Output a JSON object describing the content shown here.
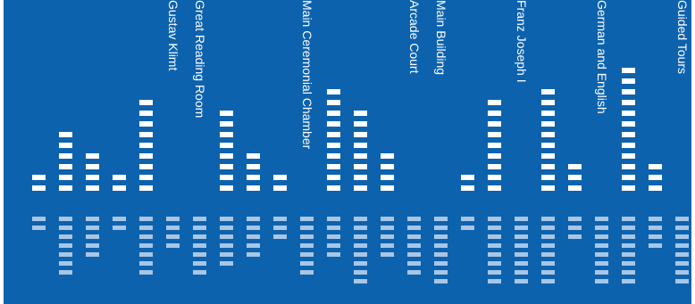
{
  "colors": {
    "background": "#0d62ad",
    "bar": "#ffffff",
    "reflection": "#a8c6e6"
  },
  "columns": [
    {
      "kind": "bar",
      "segments": 2,
      "reflection": 2
    },
    {
      "kind": "bar",
      "segments": 6,
      "reflection": 7
    },
    {
      "kind": "bar",
      "segments": 4,
      "reflection": 5
    },
    {
      "kind": "bar",
      "segments": 2,
      "reflection": 2
    },
    {
      "kind": "bar",
      "segments": 9,
      "reflection": 7
    },
    {
      "kind": "label",
      "text": "Gustav Klimt",
      "reflection": 4
    },
    {
      "kind": "label",
      "text": "Great Reading Room",
      "reflection": 7
    },
    {
      "kind": "bar",
      "segments": 8,
      "reflection": 6
    },
    {
      "kind": "bar",
      "segments": 4,
      "reflection": 5
    },
    {
      "kind": "bar",
      "segments": 2,
      "reflection": 3
    },
    {
      "kind": "label",
      "text": "Main Ceremonial Chamber",
      "reflection": 7
    },
    {
      "kind": "bar",
      "segments": 10,
      "reflection": 5
    },
    {
      "kind": "bar",
      "segments": 8,
      "reflection": 8
    },
    {
      "kind": "bar",
      "segments": 4,
      "reflection": 5
    },
    {
      "kind": "label",
      "text": "Arcade Court",
      "reflection": 7
    },
    {
      "kind": "label",
      "text": "Main Building",
      "reflection": 8
    },
    {
      "kind": "bar",
      "segments": 2,
      "reflection": 2
    },
    {
      "kind": "bar",
      "segments": 9,
      "reflection": 8
    },
    {
      "kind": "label",
      "text": "Franz Joseph I",
      "reflection": 8
    },
    {
      "kind": "bar",
      "segments": 10,
      "reflection": 8
    },
    {
      "kind": "bar",
      "segments": 3,
      "reflection": 3
    },
    {
      "kind": "label",
      "text": "German and English",
      "reflection": 8
    },
    {
      "kind": "bar",
      "segments": 12,
      "reflection": 8
    },
    {
      "kind": "bar",
      "segments": 3,
      "reflection": 4
    },
    {
      "kind": "label",
      "text": "Guided Tours",
      "reflection": 8
    }
  ]
}
